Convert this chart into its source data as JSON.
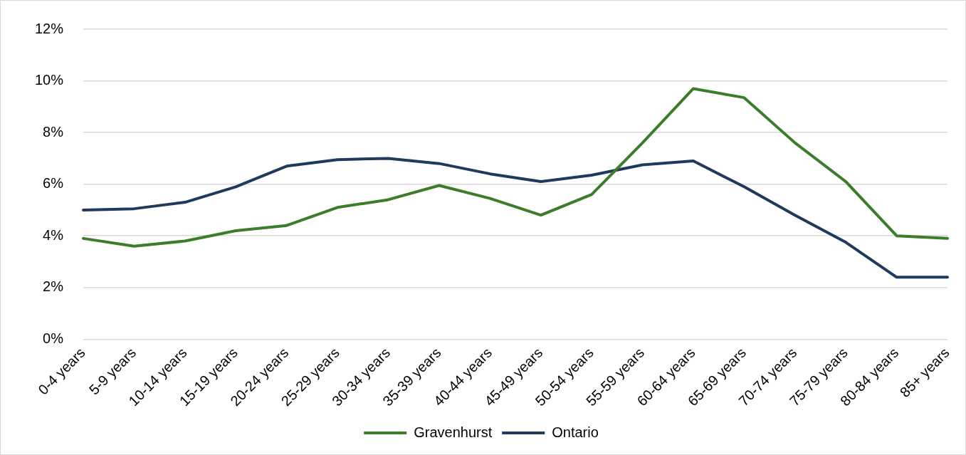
{
  "chart_data": {
    "type": "line",
    "categories": [
      "0-4 years",
      "5-9 years",
      "10-14 years",
      "15-19 years",
      "20-24 years",
      "25-29 years",
      "30-34 years",
      "35-39 years",
      "40-44 years",
      "45-49 years",
      "50-54 years",
      "55-59 years",
      "60-64 years",
      "65-69 years",
      "70-74 years",
      "75-79 years",
      "80-84 years",
      "85+ years"
    ],
    "series": [
      {
        "name": "Gravenhurst",
        "color": "#3b7d2b",
        "values": [
          3.9,
          3.6,
          3.8,
          4.2,
          4.4,
          5.1,
          5.4,
          5.95,
          5.45,
          4.8,
          5.6,
          7.6,
          9.7,
          9.35,
          7.6,
          6.1,
          4.0,
          3.9
        ]
      },
      {
        "name": "Ontario",
        "color": "#1f3a5c",
        "values": [
          5.0,
          5.05,
          5.3,
          5.9,
          6.7,
          6.95,
          7.0,
          6.8,
          6.4,
          6.1,
          6.35,
          6.75,
          6.9,
          5.9,
          4.8,
          3.75,
          2.4,
          2.4
        ]
      }
    ],
    "ylim": [
      0,
      12
    ],
    "yticks": [
      {
        "value": 0,
        "label": "0%"
      },
      {
        "value": 2,
        "label": "2%"
      },
      {
        "value": 4,
        "label": "4%"
      },
      {
        "value": 6,
        "label": "6%"
      },
      {
        "value": 8,
        "label": "8%"
      },
      {
        "value": 10,
        "label": "10%"
      },
      {
        "value": 12,
        "label": "12%"
      }
    ],
    "grid": "y",
    "legend": "bottom",
    "marker": "none",
    "line_style": "solid"
  }
}
